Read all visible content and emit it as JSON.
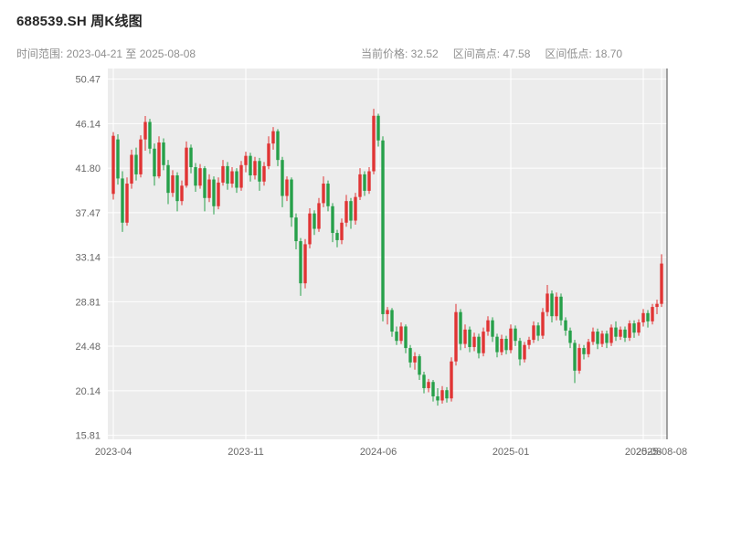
{
  "header": {
    "title": "688539.SH 周K线图",
    "date_range_text": "时间范围: 2023-04-21 至 2025-08-08",
    "stats": [
      "当前价格: 32.52",
      "区间高点: 47.58",
      "区间低点: 18.70"
    ]
  },
  "chart_data": {
    "type": "candlestick",
    "title": "688539.SH 周K线图",
    "symbol": "688539.SH",
    "interval": "weekly",
    "date_range": {
      "start": "2023-04-21",
      "end": "2025-08-08"
    },
    "current_price": 32.52,
    "range_high": 47.58,
    "range_low": 18.7,
    "xlabel": "",
    "ylabel": "",
    "grid": true,
    "legend": false,
    "ylim": [
      15.42,
      51.5
    ],
    "y_ticks": [
      50.47,
      46.14,
      41.8,
      37.47,
      33.14,
      28.81,
      24.48,
      20.14,
      15.81
    ],
    "x_ticks": [
      {
        "label": "2023-04",
        "i": 0
      },
      {
        "label": "2023-11",
        "i": 29
      },
      {
        "label": "2024-06",
        "i": 58
      },
      {
        "label": "2025-01",
        "i": 87
      },
      {
        "label": "2025-08",
        "i": 116
      },
      {
        "label": "2025-08-08",
        "i": 120
      }
    ],
    "colors": {
      "up": "#e03434",
      "down": "#26a049",
      "plot_bg": "#ececec",
      "grid": "#ffffff",
      "spine": "#4d4d4d",
      "tick_text": "#666666"
    },
    "candles": [
      [
        39.3,
        45.31,
        38.75,
        44.95
      ],
      [
        44.6,
        45.1,
        40.2,
        40.8
      ],
      [
        40.8,
        41.5,
        35.6,
        36.5
      ],
      [
        36.5,
        40.9,
        36.2,
        40.3
      ],
      [
        40.3,
        43.6,
        39.8,
        43.1
      ],
      [
        43.1,
        43.8,
        40.6,
        41.2
      ],
      [
        41.2,
        45.0,
        40.9,
        44.6
      ],
      [
        44.6,
        46.88,
        43.5,
        46.3
      ],
      [
        46.3,
        46.6,
        43.2,
        43.7
      ],
      [
        43.7,
        44.2,
        40.1,
        41.0
      ],
      [
        41.0,
        44.9,
        40.8,
        44.3
      ],
      [
        44.3,
        44.7,
        41.6,
        42.1
      ],
      [
        42.1,
        42.6,
        38.3,
        39.4
      ],
      [
        39.4,
        41.6,
        39.0,
        41.1
      ],
      [
        41.1,
        41.4,
        37.6,
        38.6
      ],
      [
        38.6,
        40.6,
        38.2,
        40.1
      ],
      [
        40.1,
        44.4,
        39.9,
        43.8
      ],
      [
        43.8,
        44.1,
        41.3,
        41.9
      ],
      [
        41.9,
        42.3,
        39.5,
        40.1
      ],
      [
        40.1,
        42.2,
        39.8,
        41.8
      ],
      [
        41.8,
        42.0,
        37.6,
        38.9
      ],
      [
        38.9,
        41.2,
        38.5,
        40.7
      ],
      [
        40.7,
        41.0,
        37.3,
        38.1
      ],
      [
        38.1,
        40.9,
        37.8,
        40.4
      ],
      [
        40.4,
        42.6,
        40.1,
        42.0
      ],
      [
        42.0,
        42.4,
        39.7,
        40.3
      ],
      [
        40.3,
        41.9,
        39.9,
        41.5
      ],
      [
        41.5,
        41.8,
        39.4,
        39.9
      ],
      [
        39.9,
        42.5,
        39.6,
        42.1
      ],
      [
        42.1,
        43.4,
        41.4,
        43.0
      ],
      [
        43.0,
        43.3,
        40.5,
        41.1
      ],
      [
        41.1,
        42.9,
        40.7,
        42.5
      ],
      [
        42.5,
        42.8,
        39.6,
        40.5
      ],
      [
        40.5,
        42.4,
        40.1,
        42.0
      ],
      [
        42.0,
        44.9,
        41.7,
        44.2
      ],
      [
        44.2,
        45.8,
        43.6,
        45.4
      ],
      [
        45.4,
        45.6,
        42.0,
        42.6
      ],
      [
        42.6,
        42.9,
        38.0,
        39.1
      ],
      [
        39.1,
        41.0,
        38.6,
        40.7
      ],
      [
        40.7,
        40.9,
        36.1,
        37.0
      ],
      [
        37.0,
        37.4,
        33.9,
        34.7
      ],
      [
        34.7,
        35.0,
        29.38,
        30.6
      ],
      [
        30.6,
        34.9,
        30.1,
        34.4
      ],
      [
        34.4,
        37.9,
        34.0,
        37.4
      ],
      [
        37.4,
        37.7,
        35.3,
        35.9
      ],
      [
        35.9,
        38.9,
        35.6,
        38.4
      ],
      [
        38.4,
        41.0,
        38.0,
        40.3
      ],
      [
        40.3,
        40.6,
        37.6,
        38.1
      ],
      [
        38.1,
        38.4,
        34.6,
        35.5
      ],
      [
        35.5,
        35.8,
        34.1,
        34.8
      ],
      [
        34.8,
        36.9,
        34.4,
        36.5
      ],
      [
        36.5,
        39.2,
        36.1,
        38.6
      ],
      [
        38.6,
        38.9,
        35.9,
        36.7
      ],
      [
        36.7,
        39.4,
        36.3,
        39.0
      ],
      [
        39.0,
        41.8,
        38.7,
        41.2
      ],
      [
        41.2,
        41.5,
        39.1,
        39.6
      ],
      [
        39.6,
        41.9,
        39.3,
        41.5
      ],
      [
        41.5,
        47.58,
        41.2,
        46.9
      ],
      [
        46.9,
        47.1,
        43.9,
        44.5
      ],
      [
        44.5,
        44.9,
        26.9,
        27.6
      ],
      [
        27.6,
        28.3,
        26.6,
        28.0
      ],
      [
        28.0,
        28.2,
        25.4,
        25.9
      ],
      [
        25.9,
        26.4,
        24.6,
        25.0
      ],
      [
        25.0,
        26.8,
        24.7,
        26.4
      ],
      [
        26.4,
        26.6,
        23.8,
        24.3
      ],
      [
        24.3,
        24.6,
        22.4,
        22.9
      ],
      [
        22.9,
        23.9,
        22.2,
        23.5
      ],
      [
        23.5,
        23.7,
        21.2,
        21.7
      ],
      [
        21.7,
        22.0,
        19.9,
        20.4
      ],
      [
        20.4,
        21.3,
        20.0,
        21.0
      ],
      [
        21.0,
        21.2,
        19.1,
        19.6
      ],
      [
        19.6,
        20.4,
        18.7,
        19.2
      ],
      [
        19.2,
        20.6,
        18.9,
        20.2
      ],
      [
        20.2,
        20.5,
        19.0,
        19.4
      ],
      [
        19.4,
        23.4,
        19.1,
        23.0
      ],
      [
        23.0,
        28.6,
        22.6,
        27.8
      ],
      [
        27.8,
        28.1,
        24.1,
        24.7
      ],
      [
        24.7,
        26.6,
        24.3,
        26.1
      ],
      [
        26.1,
        26.4,
        23.9,
        24.4
      ],
      [
        24.4,
        25.8,
        24.0,
        25.4
      ],
      [
        25.4,
        25.7,
        23.3,
        23.8
      ],
      [
        23.8,
        26.3,
        23.5,
        25.9
      ],
      [
        25.9,
        27.4,
        25.5,
        27.0
      ],
      [
        27.0,
        27.3,
        24.9,
        25.4
      ],
      [
        25.4,
        25.7,
        23.4,
        23.9
      ],
      [
        23.9,
        25.6,
        23.6,
        25.2
      ],
      [
        25.2,
        25.5,
        23.7,
        24.1
      ],
      [
        24.1,
        26.6,
        23.8,
        26.2
      ],
      [
        26.2,
        26.5,
        24.5,
        25.0
      ],
      [
        25.0,
        25.3,
        22.6,
        23.2
      ],
      [
        23.2,
        24.9,
        22.9,
        24.6
      ],
      [
        24.6,
        25.4,
        24.2,
        25.1
      ],
      [
        25.1,
        26.9,
        24.8,
        26.5
      ],
      [
        26.5,
        26.8,
        25.0,
        25.5
      ],
      [
        25.5,
        28.2,
        25.2,
        27.8
      ],
      [
        27.8,
        30.44,
        27.4,
        29.6
      ],
      [
        29.6,
        29.9,
        26.8,
        27.4
      ],
      [
        27.4,
        29.7,
        27.0,
        29.3
      ],
      [
        29.3,
        29.6,
        26.5,
        27.0
      ],
      [
        27.0,
        27.3,
        25.5,
        26.0
      ],
      [
        26.0,
        26.3,
        24.3,
        24.8
      ],
      [
        24.8,
        25.1,
        20.9,
        22.1
      ],
      [
        22.1,
        24.7,
        21.8,
        24.3
      ],
      [
        24.3,
        24.6,
        23.2,
        23.7
      ],
      [
        23.7,
        25.2,
        23.4,
        24.9
      ],
      [
        24.9,
        26.3,
        24.6,
        25.9
      ],
      [
        25.9,
        26.2,
        24.2,
        24.7
      ],
      [
        24.7,
        26.0,
        24.4,
        25.7
      ],
      [
        25.7,
        26.0,
        24.3,
        24.8
      ],
      [
        24.8,
        26.6,
        24.5,
        26.3
      ],
      [
        26.3,
        26.9,
        25.0,
        25.4
      ],
      [
        25.4,
        26.4,
        25.1,
        26.1
      ],
      [
        26.1,
        26.4,
        24.9,
        25.3
      ],
      [
        25.3,
        27.0,
        25.0,
        26.7
      ],
      [
        26.7,
        27.0,
        25.3,
        25.8
      ],
      [
        25.8,
        27.1,
        25.5,
        26.8
      ],
      [
        26.8,
        28.1,
        26.4,
        27.7
      ],
      [
        27.7,
        28.0,
        26.3,
        26.9
      ],
      [
        26.9,
        28.6,
        26.6,
        28.3
      ],
      [
        28.3,
        29.0,
        27.6,
        28.6
      ],
      [
        28.6,
        33.43,
        28.3,
        32.52
      ]
    ]
  }
}
